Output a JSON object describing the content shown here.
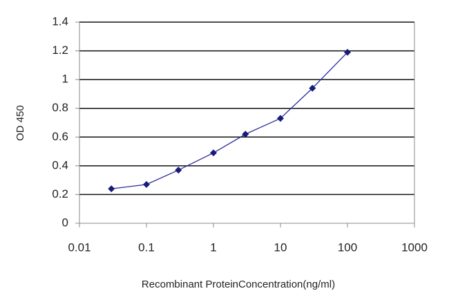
{
  "chart_data": {
    "type": "line",
    "x_label": "Recombinant ProteinConcentration(ng/ml)",
    "y_label": "OD 450",
    "x": [
      0.03,
      0.1,
      0.3,
      1,
      3,
      10,
      30,
      100
    ],
    "series": [
      {
        "name": "OD 450",
        "color": "#2b2b9a",
        "values": [
          0.24,
          0.27,
          0.37,
          0.49,
          0.62,
          0.73,
          0.94,
          1.19
        ]
      }
    ],
    "xscale": "log",
    "xlim": [
      0.01,
      1000
    ],
    "xticks": [
      0.01,
      0.1,
      1,
      10,
      100,
      1000
    ],
    "ylim": [
      0,
      1.4
    ],
    "yticks": [
      0,
      0.2,
      0.4,
      0.6,
      0.8,
      1,
      1.2,
      1.4
    ],
    "grid": true
  }
}
